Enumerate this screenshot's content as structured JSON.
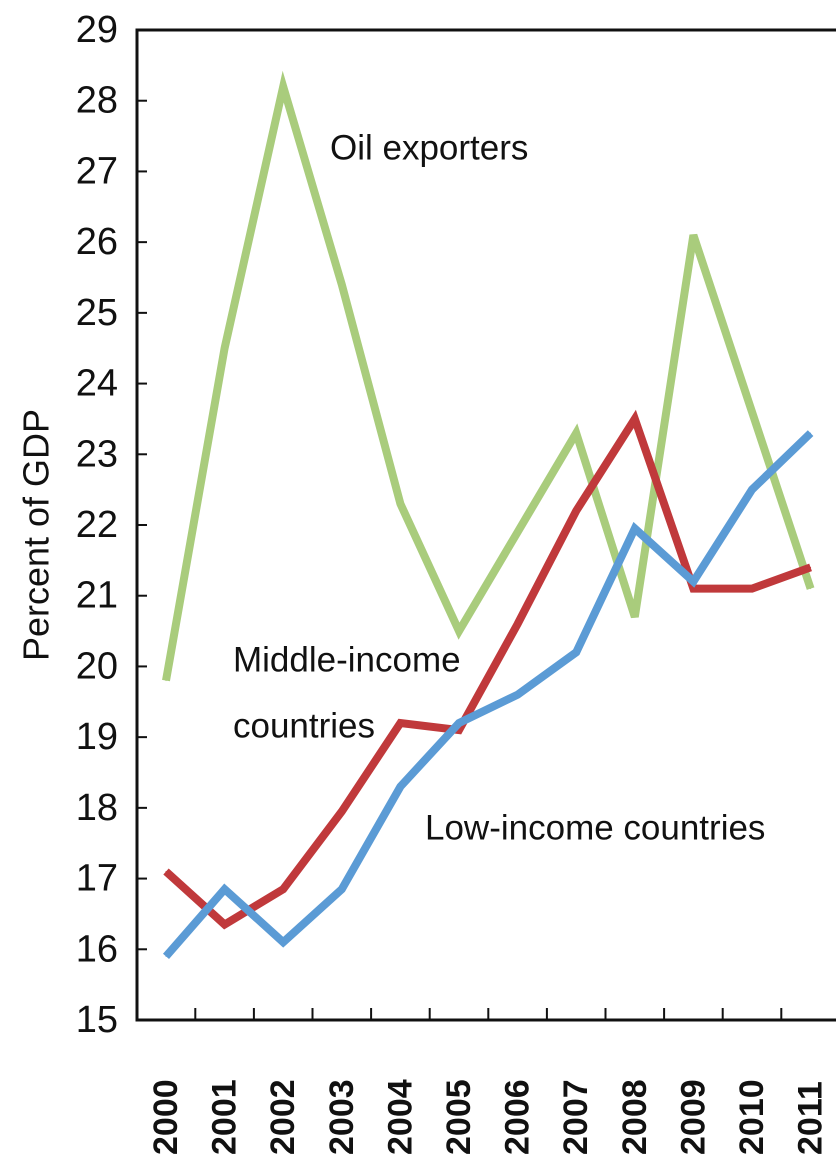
{
  "chart_data": {
    "type": "line",
    "title": "",
    "xlabel": "",
    "ylabel": "Percent of GDP",
    "x": [
      "2000",
      "2001",
      "2002",
      "2003",
      "2004",
      "2005",
      "2006",
      "2007",
      "2008",
      "2009",
      "2010",
      "2011"
    ],
    "ylim": [
      15,
      29
    ],
    "yticks": [
      "15",
      "16",
      "17",
      "18",
      "19",
      "20",
      "21",
      "22",
      "23",
      "24",
      "25",
      "26",
      "27",
      "28",
      "29"
    ],
    "grid": false,
    "legend": "none (series labeled inline)",
    "series": [
      {
        "name": "Oil exporters",
        "color": "#a9cc7c",
        "values": [
          19.8,
          24.5,
          28.2,
          25.4,
          22.3,
          20.5,
          21.9,
          23.3,
          20.7,
          26.1,
          23.6,
          21.1
        ]
      },
      {
        "name": "Middle-income countries",
        "color": "#c0393b",
        "values": [
          17.1,
          16.35,
          16.85,
          17.95,
          19.2,
          19.1,
          20.6,
          22.2,
          23.5,
          21.1,
          21.1,
          21.4
        ]
      },
      {
        "name": "Low-income countries",
        "color": "#5b9bd5",
        "values": [
          15.9,
          16.85,
          16.1,
          16.85,
          18.3,
          19.2,
          19.6,
          20.2,
          21.95,
          21.2,
          22.5,
          23.3
        ]
      }
    ],
    "annotations": [
      {
        "text": "Oil exporters"
      },
      {
        "lines": [
          "Middle-income",
          "countries"
        ]
      },
      {
        "text": "Low-income countries"
      }
    ]
  }
}
